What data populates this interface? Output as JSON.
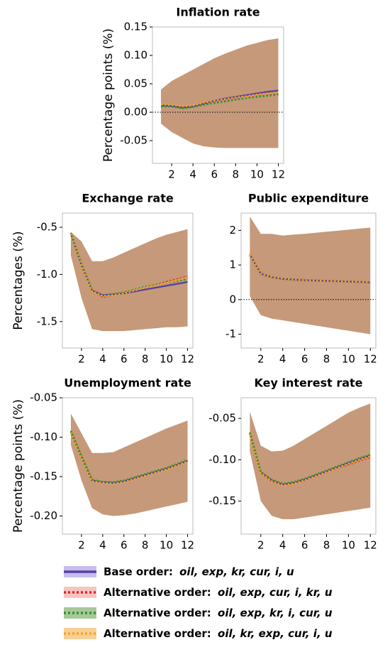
{
  "chart_data": [
    {
      "type": "line",
      "title": "Inflation rate",
      "ylabel": "Percentage points  (%)",
      "x": [
        1,
        2,
        3,
        4,
        5,
        6,
        7,
        8,
        9,
        10,
        11,
        12
      ],
      "xlim": [
        0.2,
        12.5
      ],
      "xticks": [
        2,
        4,
        6,
        8,
        10,
        12
      ],
      "ylim": [
        -0.09,
        0.15
      ],
      "yticks": [
        {
          "value": -0.05,
          "label": "-0.05"
        },
        {
          "value": 0,
          "label": "0.00"
        },
        0.05,
        {
          "value": 0.1,
          "label": "0.10"
        },
        0.15
      ],
      "zero_line": true,
      "band": {
        "color": "#c29472",
        "lower": [
          -0.02,
          -0.035,
          -0.045,
          -0.055,
          -0.06,
          -0.062,
          -0.063,
          -0.063,
          -0.063,
          -0.063,
          -0.063,
          -0.063
        ],
        "upper": [
          0.04,
          0.055,
          0.065,
          0.075,
          0.085,
          0.095,
          0.103,
          0.11,
          0.117,
          0.122,
          0.127,
          0.13
        ]
      },
      "series": [
        {
          "color": "#5b3fa0",
          "dash": false,
          "values": [
            0.012,
            0.011,
            0.008,
            0.01,
            0.015,
            0.02,
            0.024,
            0.027,
            0.03,
            0.033,
            0.036,
            0.038
          ]
        },
        {
          "color": "#e8231f",
          "dash": true,
          "values": [
            0.013,
            0.012,
            0.01,
            0.011,
            0.016,
            0.019,
            0.022,
            0.025,
            0.028,
            0.03,
            0.032,
            0.034
          ]
        },
        {
          "color": "#2a9a2a",
          "dash": true,
          "values": [
            0.01,
            0.01,
            0.007,
            0.009,
            0.013,
            0.016,
            0.019,
            0.022,
            0.025,
            0.027,
            0.029,
            0.031
          ]
        },
        {
          "color": "#f5a623",
          "dash": true,
          "values": [
            0.014,
            0.013,
            0.011,
            0.012,
            0.017,
            0.02,
            0.023,
            0.026,
            0.028,
            0.031,
            0.033,
            0.035
          ]
        }
      ]
    },
    {
      "type": "line",
      "title": "Exchange rate",
      "ylabel": "Percentages (%)",
      "x": [
        1,
        2,
        3,
        4,
        5,
        6,
        7,
        8,
        9,
        10,
        11,
        12
      ],
      "xlim": [
        0.2,
        12.5
      ],
      "xticks": [
        2,
        4,
        6,
        8,
        10,
        12
      ],
      "ylim": [
        -1.78,
        -0.35
      ],
      "yticks": [
        -1.5,
        {
          "value": -1,
          "label": "-1.0"
        },
        -0.5
      ],
      "zero_line": false,
      "band": {
        "color": "#c29472",
        "lower": [
          -0.8,
          -1.25,
          -1.58,
          -1.6,
          -1.6,
          -1.6,
          -1.59,
          -1.58,
          -1.57,
          -1.56,
          -1.56,
          -1.55
        ],
        "upper": [
          -0.55,
          -0.65,
          -0.86,
          -0.86,
          -0.82,
          -0.77,
          -0.72,
          -0.67,
          -0.62,
          -0.58,
          -0.55,
          -0.52
        ]
      },
      "series": [
        {
          "color": "#5b3fa0",
          "dash": false,
          "values": [
            -0.57,
            -0.9,
            -1.17,
            -1.22,
            -1.21,
            -1.2,
            -1.18,
            -1.16,
            -1.14,
            -1.12,
            -1.1,
            -1.08
          ]
        },
        {
          "color": "#e8231f",
          "dash": true,
          "values": [
            -0.57,
            -0.9,
            -1.17,
            -1.24,
            -1.22,
            -1.2,
            -1.17,
            -1.14,
            -1.11,
            -1.08,
            -1.05,
            -1.02
          ]
        },
        {
          "color": "#2a9a2a",
          "dash": true,
          "values": [
            -0.56,
            -0.89,
            -1.17,
            -1.23,
            -1.21,
            -1.19,
            -1.16,
            -1.13,
            -1.11,
            -1.09,
            -1.07,
            -1.05
          ]
        },
        {
          "color": "#f5a623",
          "dash": true,
          "values": [
            -0.57,
            -0.9,
            -1.18,
            -1.23,
            -1.22,
            -1.2,
            -1.17,
            -1.14,
            -1.12,
            -1.09,
            -1.06,
            -1.03
          ]
        }
      ]
    },
    {
      "type": "line",
      "title": "Public expenditure",
      "x": [
        1,
        2,
        3,
        4,
        5,
        6,
        7,
        8,
        9,
        10,
        11,
        12
      ],
      "xlim": [
        0.2,
        12.5
      ],
      "xticks": [
        2,
        4,
        6,
        8,
        10,
        12
      ],
      "ylim": [
        -1.4,
        2.5
      ],
      "yticks": [
        -1,
        0,
        1,
        2
      ],
      "zero_line": true,
      "band": {
        "color": "#c29472",
        "lower": [
          0.1,
          -0.45,
          -0.55,
          -0.6,
          -0.65,
          -0.7,
          -0.75,
          -0.8,
          -0.85,
          -0.9,
          -0.95,
          -1.0
        ],
        "upper": [
          2.4,
          1.9,
          1.9,
          1.85,
          1.88,
          1.9,
          1.93,
          1.96,
          1.99,
          2.02,
          2.05,
          2.08
        ]
      },
      "series": [
        {
          "color": "#5b3fa0",
          "dash": false,
          "values": [
            1.3,
            0.75,
            0.65,
            0.6,
            0.58,
            0.56,
            0.55,
            0.54,
            0.53,
            0.52,
            0.51,
            0.5
          ]
        },
        {
          "color": "#e8231f",
          "dash": true,
          "values": [
            1.31,
            0.76,
            0.66,
            0.61,
            0.58,
            0.57,
            0.55,
            0.54,
            0.53,
            0.52,
            0.51,
            0.5
          ]
        },
        {
          "color": "#2a9a2a",
          "dash": true,
          "values": [
            1.29,
            0.74,
            0.65,
            0.6,
            0.57,
            0.56,
            0.55,
            0.54,
            0.53,
            0.52,
            0.51,
            0.5
          ]
        },
        {
          "color": "#f5a623",
          "dash": true,
          "values": [
            1.3,
            0.75,
            0.66,
            0.61,
            0.58,
            0.56,
            0.55,
            0.54,
            0.53,
            0.52,
            0.51,
            0.51
          ]
        }
      ]
    },
    {
      "type": "line",
      "title": "Unemployment rate",
      "ylabel": "Percentage points  (%)",
      "x": [
        1,
        2,
        3,
        4,
        5,
        6,
        7,
        8,
        9,
        10,
        11,
        12
      ],
      "xlim": [
        0.2,
        12.5
      ],
      "xticks": [
        2,
        4,
        6,
        8,
        10,
        12
      ],
      "ylim": [
        -0.223,
        -0.05
      ],
      "yticks": [
        {
          "value": -0.2,
          "label": "-0.20"
        },
        -0.15,
        {
          "value": -0.1,
          "label": "-0.10"
        },
        -0.05
      ],
      "zero_line": false,
      "band": {
        "color": "#c29472",
        "lower": [
          -0.11,
          -0.155,
          -0.19,
          -0.198,
          -0.2,
          -0.199,
          -0.197,
          -0.194,
          -0.191,
          -0.188,
          -0.185,
          -0.182
        ],
        "upper": [
          -0.07,
          -0.095,
          -0.12,
          -0.12,
          -0.119,
          -0.113,
          -0.107,
          -0.101,
          -0.095,
          -0.089,
          -0.084,
          -0.079
        ]
      },
      "series": [
        {
          "color": "#5b3fa0",
          "dash": false,
          "values": [
            -0.093,
            -0.125,
            -0.155,
            -0.157,
            -0.158,
            -0.156,
            -0.152,
            -0.148,
            -0.144,
            -0.14,
            -0.135,
            -0.13
          ]
        },
        {
          "color": "#e8231f",
          "dash": true,
          "values": [
            -0.093,
            -0.125,
            -0.155,
            -0.158,
            -0.158,
            -0.156,
            -0.152,
            -0.148,
            -0.144,
            -0.14,
            -0.135,
            -0.13
          ]
        },
        {
          "color": "#2a9a2a",
          "dash": true,
          "values": [
            -0.092,
            -0.124,
            -0.154,
            -0.157,
            -0.157,
            -0.155,
            -0.151,
            -0.147,
            -0.143,
            -0.139,
            -0.134,
            -0.129
          ]
        },
        {
          "color": "#f5a623",
          "dash": true,
          "values": [
            -0.094,
            -0.126,
            -0.156,
            -0.158,
            -0.159,
            -0.157,
            -0.153,
            -0.149,
            -0.145,
            -0.141,
            -0.136,
            -0.131
          ]
        }
      ]
    },
    {
      "type": "line",
      "title": "Key interest rate",
      "x": [
        1,
        2,
        3,
        4,
        5,
        6,
        7,
        8,
        9,
        10,
        11,
        12
      ],
      "xlim": [
        0.2,
        12.5
      ],
      "xticks": [
        2,
        4,
        6,
        8,
        10,
        12
      ],
      "ylim": [
        -0.19,
        -0.025
      ],
      "yticks": [
        -0.15,
        {
          "value": -0.1,
          "label": "-0.10"
        },
        -0.05
      ],
      "zero_line": false,
      "band": {
        "color": "#c29472",
        "lower": [
          -0.09,
          -0.15,
          -0.168,
          -0.172,
          -0.172,
          -0.17,
          -0.168,
          -0.166,
          -0.164,
          -0.162,
          -0.16,
          -0.158
        ],
        "upper": [
          -0.042,
          -0.083,
          -0.09,
          -0.089,
          -0.083,
          -0.075,
          -0.067,
          -0.059,
          -0.051,
          -0.043,
          -0.037,
          -0.032
        ]
      },
      "series": [
        {
          "color": "#5b3fa0",
          "dash": false,
          "values": [
            -0.068,
            -0.115,
            -0.125,
            -0.13,
            -0.128,
            -0.124,
            -0.119,
            -0.114,
            -0.109,
            -0.104,
            -0.099,
            -0.095
          ]
        },
        {
          "color": "#e8231f",
          "dash": true,
          "values": [
            -0.068,
            -0.116,
            -0.126,
            -0.13,
            -0.128,
            -0.125,
            -0.12,
            -0.115,
            -0.11,
            -0.106,
            -0.101,
            -0.097
          ]
        },
        {
          "color": "#2a9a2a",
          "dash": true,
          "values": [
            -0.067,
            -0.115,
            -0.124,
            -0.129,
            -0.127,
            -0.123,
            -0.118,
            -0.113,
            -0.108,
            -0.103,
            -0.098,
            -0.094
          ]
        },
        {
          "color": "#f5a623",
          "dash": true,
          "values": [
            -0.069,
            -0.116,
            -0.126,
            -0.131,
            -0.129,
            -0.125,
            -0.12,
            -0.115,
            -0.11,
            -0.105,
            -0.1,
            -0.096
          ]
        }
      ]
    }
  ],
  "legend": [
    {
      "prefix": "Base order: ",
      "order": "oil, exp, kr, cur, i, u",
      "color": "#5b3fa0",
      "band_color": "#c4bdf0",
      "dash": false
    },
    {
      "prefix": "Alternative order: ",
      "order": "oil, exp, cur, i, kr, u",
      "color": "#e8231f",
      "band_color": "#f7c4c4",
      "dash": true
    },
    {
      "prefix": "Alternative order: ",
      "order": "oil, exp, kr, i, cur, u",
      "color": "#2a9a2a",
      "band_color": "#a9c79a",
      "dash": true
    },
    {
      "prefix": "Alternative order: ",
      "order": "oil, kr, exp, cur, i, u",
      "color": "#f5a623",
      "band_color": "#f8cf98",
      "dash": true
    }
  ]
}
